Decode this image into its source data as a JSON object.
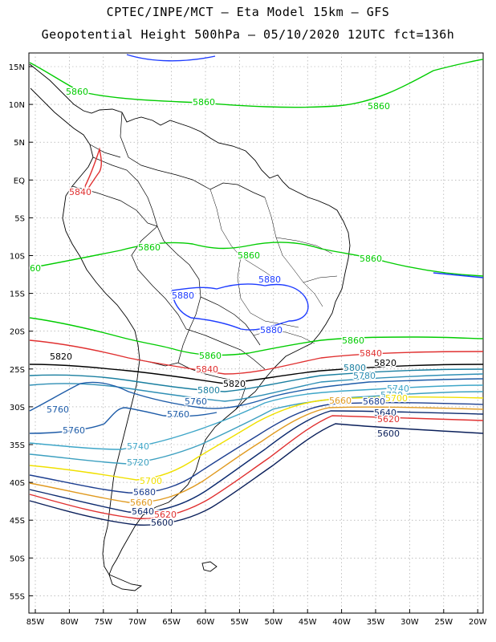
{
  "title_line1": "CPTEC/INPE/MCT –  Eta Model 15km – GFS",
  "title_line2": "Geopotential Height 500hPa – 05/10/2020 12UTC fct=136h",
  "lat_labels": [
    "15N",
    "10N",
    "5N",
    "EQ",
    "5S",
    "10S",
    "15S",
    "20S",
    "25S",
    "30S",
    "35S",
    "40S",
    "45S",
    "50S",
    "55S"
  ],
  "lon_labels": [
    "85W",
    "80W",
    "75W",
    "70W",
    "65W",
    "60W",
    "55W",
    "50W",
    "45W",
    "40W",
    "35W",
    "30W",
    "25W",
    "20W"
  ],
  "contour_colors": {
    "5880": "#1e3cff",
    "5860": "#00cc00",
    "5840": "#e03030",
    "5820": "#000000",
    "5800": "#1a7fa0",
    "5780": "#2f8fb5",
    "5760": "#1e5ca8",
    "5740": "#3ea6c8",
    "5720": "#3da0c0",
    "5700": "#f0e000",
    "5680": "#1d3f90",
    "5660": "#e09a20",
    "5640": "#0c2a6e",
    "5620": "#e03030",
    "5600": "#0a1f5a"
  },
  "contour_labels": [
    {
      "id": "l5860a",
      "text": "5860",
      "level": "5860"
    },
    {
      "id": "l5860b",
      "text": "5860",
      "level": "5860"
    },
    {
      "id": "l5860c",
      "text": "5860",
      "level": "5860"
    },
    {
      "id": "l5860d",
      "text": "5860",
      "level": "5860"
    },
    {
      "id": "l5860e",
      "text": "5860",
      "level": "5860"
    },
    {
      "id": "l5860f",
      "text": "5860",
      "level": "5860"
    },
    {
      "id": "l5860g",
      "text": "5860",
      "level": "5860"
    },
    {
      "id": "l5860h",
      "text": "5860",
      "level": "5860"
    },
    {
      "id": "l5860i",
      "text": "60",
      "level": "5860"
    },
    {
      "id": "l5880a",
      "text": "5880",
      "level": "5880"
    },
    {
      "id": "l5880b",
      "text": "5880",
      "level": "5880"
    },
    {
      "id": "l5880c",
      "text": "5880",
      "level": "5880"
    },
    {
      "id": "l5840a",
      "text": "5840",
      "level": "5840"
    },
    {
      "id": "l5840b",
      "text": "5840",
      "level": "5840"
    },
    {
      "id": "l5840c",
      "text": "5840",
      "level": "5840"
    },
    {
      "id": "l5820a",
      "text": "5820",
      "level": "5820"
    },
    {
      "id": "l5820b",
      "text": "5820",
      "level": "5820"
    },
    {
      "id": "l5820c",
      "text": "5820",
      "level": "5820"
    },
    {
      "id": "l5800a",
      "text": "5800",
      "level": "5800"
    },
    {
      "id": "l5800b",
      "text": "5800",
      "level": "5800"
    },
    {
      "id": "l5780a",
      "text": "5780",
      "level": "5780"
    },
    {
      "id": "l5760a",
      "text": "5760",
      "level": "5760"
    },
    {
      "id": "l5760b",
      "text": "5760",
      "level": "5760"
    },
    {
      "id": "l5760c",
      "text": "5760",
      "level": "5760"
    },
    {
      "id": "l5760d",
      "text": "5760",
      "level": "5760"
    },
    {
      "id": "l5740a",
      "text": "5740",
      "level": "5740"
    },
    {
      "id": "l5740b",
      "text": "5740",
      "level": "5740"
    },
    {
      "id": "l5720a",
      "text": "5720",
      "level": "5720"
    },
    {
      "id": "l5720b",
      "text": "5720",
      "level": "5720"
    },
    {
      "id": "l5700a",
      "text": "5700",
      "level": "5700"
    },
    {
      "id": "l5700b",
      "text": "5700",
      "level": "5700"
    },
    {
      "id": "l5680a",
      "text": "5680",
      "level": "5680"
    },
    {
      "id": "l5680b",
      "text": "5680",
      "level": "5680"
    },
    {
      "id": "l5660a",
      "text": "5660",
      "level": "5660"
    },
    {
      "id": "l5660b",
      "text": "5660",
      "level": "5660"
    },
    {
      "id": "l5640a",
      "text": "5640",
      "level": "5640"
    },
    {
      "id": "l5640b",
      "text": "5640",
      "level": "5640"
    },
    {
      "id": "l5620a",
      "text": "5620",
      "level": "5620"
    },
    {
      "id": "l5620b",
      "text": "5620",
      "level": "5620"
    },
    {
      "id": "l5600a",
      "text": "5600",
      "level": "5600"
    },
    {
      "id": "l5600b",
      "text": "5600",
      "level": "5600"
    }
  ]
}
